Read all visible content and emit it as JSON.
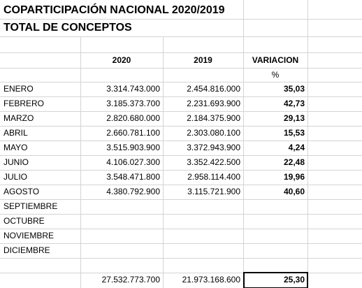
{
  "title": "COPARTICIPACIÓN  NACIONAL 2020/2019",
  "subtitle": "TOTAL  DE CONCEPTOS",
  "table": {
    "header": [
      "2020",
      "2019",
      "VARIACION"
    ],
    "unit": "%",
    "rows": [
      [
        "ENERO",
        "3.314.743.000",
        "2.454.816.000",
        "35,03"
      ],
      [
        "FEBRERO",
        "3.185.373.700",
        "2.231.693.900",
        "42,73"
      ],
      [
        "MARZO",
        "2.820.680.000",
        "2.184.375.900",
        "29,13"
      ],
      [
        "ABRIL",
        "2.660.781.100",
        "2.303.080.100",
        "15,53"
      ],
      [
        "MAYO",
        "3.515.903.900",
        "3.372.943.900",
        "4,24"
      ],
      [
        "JUNIO",
        "4.106.027.300",
        "3.352.422.500",
        "22,48"
      ],
      [
        "JULIO",
        "3.548.471.800",
        "2.958.114.400",
        "19,96"
      ],
      [
        "AGOSTO",
        "4.380.792.900",
        "3.115.721.900",
        "40,60"
      ],
      [
        "SEPTIEMBRE"
      ],
      [
        "OCTUBRE"
      ],
      [
        "NOVIEMBRE"
      ],
      [
        "DICIEMBRE"
      ]
    ],
    "total": [
      "27.532.773.700",
      "21.973.168.600",
      "25,30"
    ]
  }
}
